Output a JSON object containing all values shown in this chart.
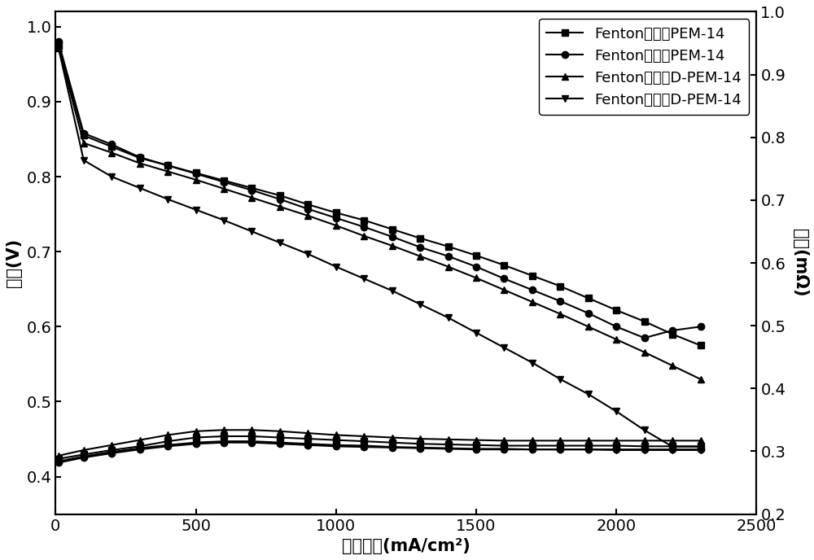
{
  "xlabel": "电流密度(mA/cm²)",
  "ylabel_left": "电压(V)",
  "ylabel_right": "内阵(mΩ)",
  "xlim": [
    0,
    2500
  ],
  "ylim_left": [
    0.35,
    1.02
  ],
  "ylim_right": [
    0.2,
    1.0
  ],
  "yticks_left": [
    0.4,
    0.5,
    0.6,
    0.7,
    0.8,
    0.9,
    1.0
  ],
  "yticks_right": [
    0.2,
    0.3,
    0.4,
    0.5,
    0.6,
    0.7,
    0.8,
    0.9,
    1.0
  ],
  "xticks": [
    0,
    500,
    1000,
    1500,
    2000,
    2500
  ],
  "series": [
    {
      "label": "Fenton处理前PEM-14",
      "marker": "s",
      "x": [
        10,
        100,
        200,
        300,
        400,
        500,
        600,
        700,
        800,
        900,
        1000,
        1100,
        1200,
        1300,
        1400,
        1500,
        1600,
        1700,
        1800,
        1900,
        2000,
        2100,
        2200,
        2300
      ],
      "y": [
        0.975,
        0.855,
        0.84,
        0.825,
        0.815,
        0.805,
        0.795,
        0.785,
        0.775,
        0.763,
        0.752,
        0.742,
        0.73,
        0.718,
        0.707,
        0.695,
        0.682,
        0.668,
        0.654,
        0.638,
        0.622,
        0.607,
        0.59,
        0.575
      ]
    },
    {
      "label": "Fenton处理后PEM-14",
      "marker": "o",
      "x": [
        10,
        100,
        200,
        300,
        400,
        500,
        600,
        700,
        800,
        900,
        1000,
        1100,
        1200,
        1300,
        1400,
        1500,
        1600,
        1700,
        1800,
        1900,
        2000,
        2100,
        2200,
        2300
      ],
      "y": [
        0.98,
        0.858,
        0.843,
        0.826,
        0.815,
        0.804,
        0.793,
        0.782,
        0.77,
        0.757,
        0.745,
        0.733,
        0.72,
        0.706,
        0.694,
        0.68,
        0.664,
        0.649,
        0.634,
        0.618,
        0.6,
        0.585,
        0.595,
        0.6
      ]
    },
    {
      "label": "Fenton处理前D-PEM-14",
      "marker": "^",
      "x": [
        10,
        100,
        200,
        300,
        400,
        500,
        600,
        700,
        800,
        900,
        1000,
        1100,
        1200,
        1300,
        1400,
        1500,
        1600,
        1700,
        1800,
        1900,
        2000,
        2100,
        2200,
        2300
      ],
      "y": [
        0.972,
        0.845,
        0.832,
        0.818,
        0.807,
        0.796,
        0.784,
        0.772,
        0.76,
        0.748,
        0.735,
        0.721,
        0.708,
        0.694,
        0.68,
        0.665,
        0.649,
        0.633,
        0.617,
        0.6,
        0.583,
        0.566,
        0.548,
        0.53
      ]
    },
    {
      "label": "Fenton处理后D-PEM-14",
      "marker": "v",
      "x": [
        10,
        100,
        200,
        300,
        400,
        500,
        600,
        700,
        800,
        900,
        1000,
        1100,
        1200,
        1300,
        1400,
        1500,
        1600,
        1700,
        1800,
        1900,
        2000,
        2100,
        2200,
        2300
      ],
      "y": [
        0.972,
        0.822,
        0.8,
        0.785,
        0.77,
        0.756,
        0.742,
        0.727,
        0.712,
        0.697,
        0.68,
        0.664,
        0.648,
        0.63,
        0.612,
        0.592,
        0.572,
        0.552,
        0.53,
        0.51,
        0.487,
        0.462,
        0.44,
        0.44
      ]
    }
  ],
  "resistance_series": [
    {
      "marker": "s",
      "x": [
        10,
        100,
        200,
        300,
        400,
        500,
        600,
        700,
        800,
        900,
        1000,
        1100,
        1200,
        1300,
        1400,
        1500,
        1600,
        1700,
        1800,
        1900,
        2000,
        2100,
        2200,
        2300
      ],
      "y": [
        0.288,
        0.295,
        0.302,
        0.308,
        0.316,
        0.322,
        0.324,
        0.324,
        0.322,
        0.32,
        0.318,
        0.316,
        0.314,
        0.312,
        0.311,
        0.31,
        0.309,
        0.309,
        0.309,
        0.309,
        0.309,
        0.308,
        0.308,
        0.308
      ]
    },
    {
      "marker": "o",
      "x": [
        10,
        100,
        200,
        300,
        400,
        500,
        600,
        700,
        800,
        900,
        1000,
        1100,
        1200,
        1300,
        1400,
        1500,
        1600,
        1700,
        1800,
        1900,
        2000,
        2100,
        2200,
        2300
      ],
      "y": [
        0.282,
        0.29,
        0.297,
        0.303,
        0.308,
        0.312,
        0.314,
        0.314,
        0.312,
        0.31,
        0.308,
        0.307,
        0.306,
        0.305,
        0.304,
        0.303,
        0.303,
        0.303,
        0.303,
        0.303,
        0.303,
        0.303,
        0.303,
        0.303
      ]
    },
    {
      "marker": "^",
      "x": [
        10,
        100,
        200,
        300,
        400,
        500,
        600,
        700,
        800,
        900,
        1000,
        1100,
        1200,
        1300,
        1400,
        1500,
        1600,
        1700,
        1800,
        1900,
        2000,
        2100,
        2200,
        2300
      ],
      "y": [
        0.293,
        0.302,
        0.31,
        0.318,
        0.326,
        0.332,
        0.334,
        0.334,
        0.332,
        0.329,
        0.326,
        0.324,
        0.322,
        0.32,
        0.319,
        0.318,
        0.317,
        0.317,
        0.317,
        0.317,
        0.317,
        0.317,
        0.317,
        0.317
      ]
    },
    {
      "marker": "v",
      "x": [
        10,
        100,
        200,
        300,
        400,
        500,
        600,
        700,
        800,
        900,
        1000,
        1100,
        1200,
        1300,
        1400,
        1500,
        1600,
        1700,
        1800,
        1900,
        2000,
        2100,
        2200,
        2300
      ],
      "y": [
        0.284,
        0.292,
        0.299,
        0.305,
        0.31,
        0.314,
        0.316,
        0.316,
        0.314,
        0.312,
        0.31,
        0.309,
        0.307,
        0.306,
        0.305,
        0.304,
        0.304,
        0.303,
        0.303,
        0.303,
        0.302,
        0.302,
        0.302,
        0.302
      ]
    }
  ],
  "font_size": 15,
  "tick_font_size": 14,
  "legend_font_size": 13
}
